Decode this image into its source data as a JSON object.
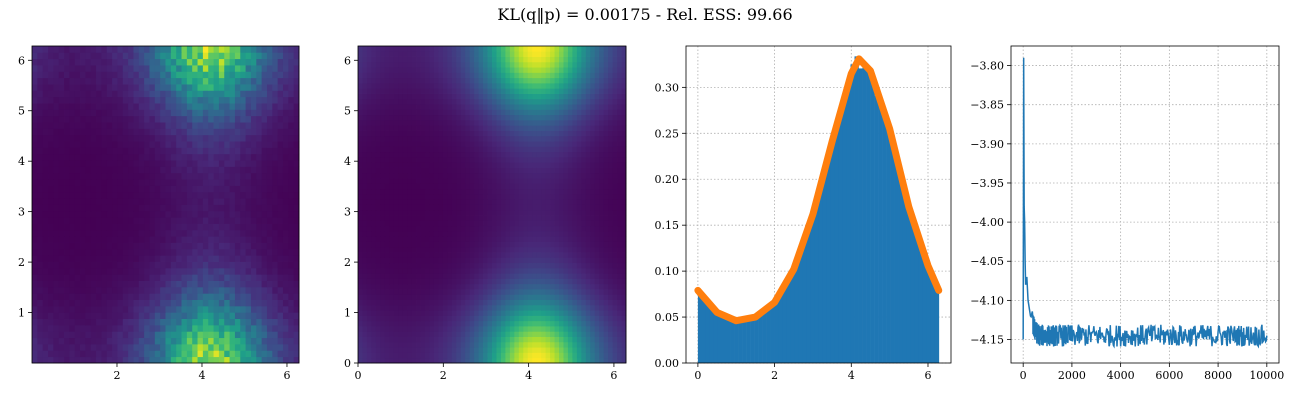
{
  "figure": {
    "title": "KL(q‖p) = 0.00175 - Rel. ESS: 99.66"
  },
  "chart_data": [
    {
      "type": "heatmap",
      "description_source": "sampled 2D density histogram",
      "xlim": [
        0,
        6.283
      ],
      "ylim": [
        0,
        6.283
      ],
      "xticks": [
        2,
        4,
        6
      ],
      "yticks": [
        1,
        2,
        3,
        4,
        5,
        6
      ],
      "grid": false,
      "colormap": "viridis",
      "bins": 50,
      "model": {
        "peak_x": 4.19,
        "peak_y_values": [
          0,
          6.283
        ],
        "noisy": true
      }
    },
    {
      "type": "heatmap",
      "xlim": [
        0,
        6.283
      ],
      "ylim": [
        0,
        6.283
      ],
      "xticks": [
        0,
        2,
        4,
        6
      ],
      "yticks": [
        0,
        1,
        2,
        3,
        4,
        5,
        6
      ],
      "grid": false,
      "colormap": "viridis",
      "bins": 60,
      "model": {
        "peak_x": 4.19,
        "peak_y_values": [
          0,
          6.283
        ],
        "noisy": false
      }
    },
    {
      "type": "bar",
      "xlim": [
        -0.31,
        6.6
      ],
      "ylim": [
        0,
        0.345
      ],
      "xticks": [
        0,
        2,
        4,
        6
      ],
      "yticks": [
        0.0,
        0.05,
        0.1,
        0.15,
        0.2,
        0.25,
        0.3
      ],
      "ytick_labels": [
        "0.00",
        "0.05",
        "0.10",
        "0.15",
        "0.20",
        "0.25",
        "0.30"
      ],
      "grid": true,
      "histogram_color": "#1f77b4",
      "curve_color": "#ff7f0e",
      "density_curve": {
        "x": [
          0,
          0.5,
          1.0,
          1.5,
          2.0,
          2.5,
          3.0,
          3.5,
          4.0,
          4.2,
          4.5,
          5.0,
          5.5,
          6.0,
          6.28
        ],
        "y": [
          0.079,
          0.055,
          0.046,
          0.05,
          0.066,
          0.102,
          0.162,
          0.241,
          0.315,
          0.331,
          0.318,
          0.255,
          0.17,
          0.106,
          0.079
        ]
      }
    },
    {
      "type": "line",
      "xlim": [
        -500,
        10500
      ],
      "ylim": [
        -4.18,
        -3.775
      ],
      "xticks": [
        0,
        2000,
        4000,
        6000,
        8000,
        10000
      ],
      "yticks": [
        -3.8,
        -3.85,
        -3.9,
        -3.95,
        -4.0,
        -4.05,
        -4.1,
        -4.15
      ],
      "ytick_labels": [
        "−3.80",
        "−3.85",
        "−3.90",
        "−3.95",
        "−4.00",
        "−4.05",
        "−4.10",
        "−4.15"
      ],
      "grid": true,
      "line_color": "#1f77b4",
      "series": [
        {
          "x": [
            0,
            20,
            40,
            60,
            80,
            100,
            150,
            200,
            300,
            400,
            500,
            700,
            1000,
            1500,
            2000,
            3000,
            4000,
            5000,
            6000,
            7000,
            8000,
            9000,
            10000
          ],
          "y": [
            -4.15,
            -3.79,
            -3.98,
            -4.0,
            -4.05,
            -4.08,
            -4.07,
            -4.1,
            -4.12,
            -4.13,
            -4.14,
            -4.145,
            -4.145,
            -4.145,
            -4.145,
            -4.145,
            -4.145,
            -4.145,
            -4.145,
            -4.145,
            -4.145,
            -4.145,
            -4.145
          ]
        }
      ]
    }
  ]
}
